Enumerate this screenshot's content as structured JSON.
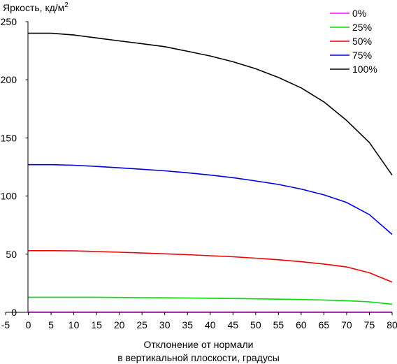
{
  "chart_data": {
    "type": "line",
    "ylabel": "Яркость, кд/м",
    "ylabel_superscript": "2",
    "xlabel_line1": "Отклонение от нормали",
    "xlabel_line2": "в вертикальной плоскости, градусы",
    "xlim": [
      -5,
      80
    ],
    "ylim": [
      0,
      250
    ],
    "x_ticks": [
      -5,
      0,
      5,
      10,
      15,
      20,
      25,
      30,
      35,
      40,
      45,
      50,
      55,
      60,
      65,
      70,
      75,
      80
    ],
    "y_ticks": [
      0,
      50,
      100,
      150,
      200,
      250
    ],
    "grid": false,
    "legend_position": "top-right",
    "x": [
      0,
      5,
      10,
      15,
      20,
      25,
      30,
      35,
      40,
      45,
      50,
      55,
      60,
      65,
      70,
      75,
      80
    ],
    "series": [
      {
        "name": "0%",
        "color": "#ff00ff",
        "values": [
          0.1,
          0.1,
          0.1,
          0.1,
          0.1,
          0.1,
          0.1,
          0.1,
          0.1,
          0.1,
          0.1,
          0.1,
          0.1,
          0.1,
          0.1,
          0.1,
          0.1
        ]
      },
      {
        "name": "25%",
        "color": "#00dd00",
        "values": [
          13,
          13,
          13,
          13,
          12.8,
          12.6,
          12.5,
          12.3,
          12.1,
          11.9,
          11.6,
          11.3,
          11,
          10.6,
          10,
          9,
          7
        ]
      },
      {
        "name": "50%",
        "color": "#ee0000",
        "values": [
          53,
          53,
          52.8,
          52.3,
          51.7,
          51,
          50.3,
          49.6,
          48.7,
          47.8,
          46.6,
          45.2,
          43.5,
          41.5,
          39,
          34,
          26
        ]
      },
      {
        "name": "75%",
        "color": "#0000dd",
        "values": [
          127,
          127,
          126.5,
          125.5,
          124.3,
          123,
          121.7,
          120,
          118,
          115.8,
          113,
          110,
          106,
          101,
          94.5,
          84,
          67
        ]
      },
      {
        "name": "100%",
        "color": "#000000",
        "values": [
          240,
          240,
          238.5,
          236,
          233.5,
          231,
          228.5,
          224.5,
          220.5,
          215.5,
          209.5,
          202,
          193,
          181,
          165,
          146,
          118
        ]
      }
    ]
  }
}
